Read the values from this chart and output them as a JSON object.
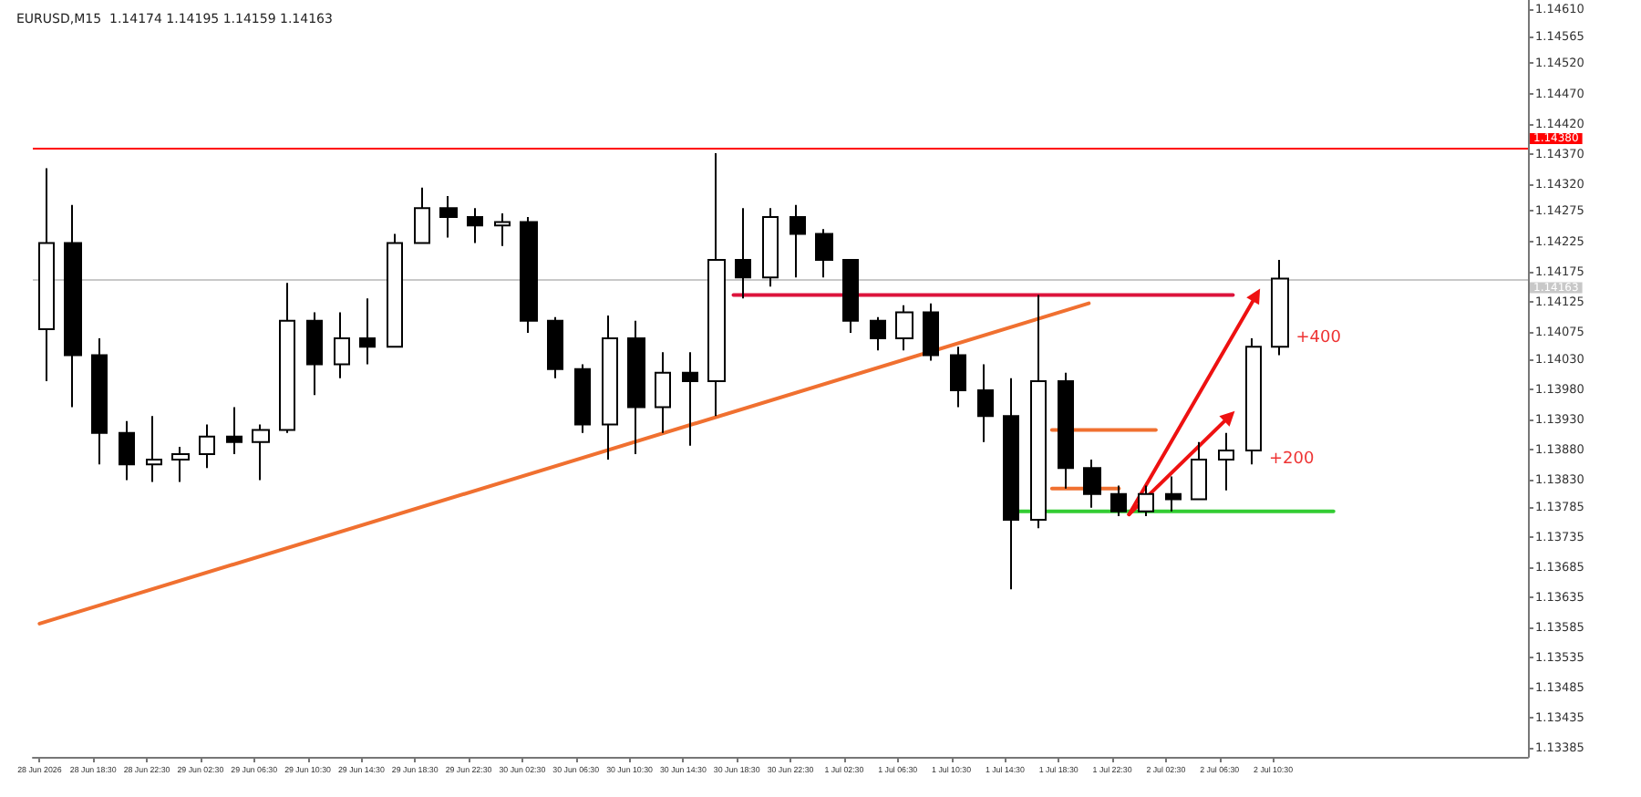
{
  "chart_data": {
    "type": "candlestick",
    "title": "EURUSD,M15  1.14174 1.14195 1.14159 1.14163",
    "color": "#000000",
    "x": [
      "2026-06-28T15:00",
      "2026-06-28T17:00",
      "2026-06-28T19:00",
      "2026-06-28T21:00",
      "2026-06-28T23:00",
      "2026-06-29T01:00",
      "2026-06-29T03:00",
      "2026-06-29T05:00",
      "2026-06-29T07:00",
      "2026-06-29T09:00",
      "2026-06-29T11:00",
      "2026-06-29T13:00",
      "2026-06-29T15:00",
      "2026-06-29T17:00",
      "2026-06-29T19:00",
      "2026-06-29T21:00",
      "2026-06-29T23:00",
      "2026-06-30T01:00",
      "2026-06-30T03:00",
      "2026-06-30T05:00",
      "2026-06-30T07:00",
      "2026-06-30T09:00",
      "2026-06-30T11:00",
      "2026-06-30T13:00",
      "2026-06-30T15:00",
      "2026-06-30T17:00",
      "2026-06-30T19:00",
      "2026-06-30T21:00",
      "2026-06-30T23:00",
      "2026-07-01T01:00",
      "2026-07-01T03:00",
      "2026-07-01T05:00",
      "2026-07-01T07:00",
      "2026-07-01T09:00",
      "2026-07-01T11:00",
      "2026-07-01T13:00",
      "2026-07-01T15:00",
      "2026-07-01T17:00",
      "2026-07-01T19:00",
      "2026-07-01T21:00",
      "2026-07-01T23:00",
      "2026-07-02T01:00",
      "2026-07-02T03:00",
      "2026-07-02T05:00",
      "2026-07-02T07:00",
      "2026-07-02T09:00",
      "2026-07-02T11:00"
    ],
    "ohlc": [
      [
        1.14079,
        1.14346,
        1.13993,
        1.14222
      ],
      [
        1.14222,
        1.14285,
        1.1395,
        1.14036
      ],
      [
        1.14036,
        1.14064,
        1.13855,
        1.13907
      ],
      [
        1.13907,
        1.13927,
        1.13829,
        1.13855
      ],
      [
        1.13855,
        1.13935,
        1.13826,
        1.13863
      ],
      [
        1.13863,
        1.13884,
        1.13826,
        1.13872
      ],
      [
        1.13872,
        1.13921,
        1.13849,
        1.13901
      ],
      [
        1.13901,
        1.1395,
        1.13872,
        1.13892
      ],
      [
        1.13892,
        1.13921,
        1.13829,
        1.13912
      ],
      [
        1.13912,
        1.14156,
        1.13907,
        1.14093
      ],
      [
        1.14093,
        1.14107,
        1.1397,
        1.14021
      ],
      [
        1.14021,
        1.14107,
        1.13998,
        1.14064
      ],
      [
        1.14064,
        1.1413,
        1.14021,
        1.1405
      ],
      [
        1.1405,
        1.14237,
        1.1405,
        1.14222
      ],
      [
        1.14222,
        1.14314,
        1.14222,
        1.1428
      ],
      [
        1.1428,
        1.143,
        1.14231,
        1.14265
      ],
      [
        1.14265,
        1.1428,
        1.14222,
        1.14251
      ],
      [
        1.14251,
        1.14271,
        1.14217,
        1.14257
      ],
      [
        1.14257,
        1.14265,
        1.14073,
        1.14093
      ],
      [
        1.14093,
        1.14099,
        1.13998,
        1.14013
      ],
      [
        1.14013,
        1.14021,
        1.13907,
        1.13921
      ],
      [
        1.13921,
        1.14102,
        1.13863,
        1.14064
      ],
      [
        1.14064,
        1.14093,
        1.13872,
        1.1395
      ],
      [
        1.1395,
        1.14041,
        1.13907,
        1.14007
      ],
      [
        1.14007,
        1.14041,
        1.13886,
        1.13993
      ],
      [
        1.13993,
        1.14371,
        1.13935,
        1.14194
      ],
      [
        1.14194,
        1.1428,
        1.1413,
        1.14165
      ],
      [
        1.14165,
        1.1428,
        1.1415,
        1.14265
      ],
      [
        1.14265,
        1.14285,
        1.14165,
        1.14237
      ],
      [
        1.14237,
        1.14245,
        1.14165,
        1.14194
      ],
      [
        1.14194,
        1.14194,
        1.14073,
        1.14093
      ],
      [
        1.14093,
        1.14099,
        1.14044,
        1.14064
      ],
      [
        1.14064,
        1.14119,
        1.14044,
        1.14107
      ],
      [
        1.14107,
        1.14122,
        1.14027,
        1.14036
      ],
      [
        1.14036,
        1.1405,
        1.1395,
        1.13978
      ],
      [
        1.13978,
        1.14021,
        1.13892,
        1.13935
      ],
      [
        1.13935,
        1.13998,
        1.13648,
        1.13763
      ],
      [
        1.13763,
        1.14136,
        1.13749,
        1.13993
      ],
      [
        1.13993,
        1.14007,
        1.13815,
        1.13849
      ],
      [
        1.13849,
        1.13863,
        1.13783,
        1.13806
      ],
      [
        1.13806,
        1.1382,
        1.13769,
        1.13777
      ],
      [
        1.13777,
        1.1382,
        1.13769,
        1.13806
      ],
      [
        1.13806,
        1.13835,
        1.13777,
        1.13797
      ],
      [
        1.13797,
        1.13892,
        1.13797,
        1.13863
      ],
      [
        1.13863,
        1.13907,
        1.13812,
        1.13878
      ],
      [
        1.13878,
        1.14064,
        1.13855,
        1.1405
      ],
      [
        1.1405,
        1.14194,
        1.14036,
        1.14163
      ]
    ],
    "series": [
      {
        "type": "line",
        "color": "#f07030",
        "x": [
          "2026-06-28T14:30",
          "2026-07-01T20:45"
        ],
        "values": [
          1.13591,
          1.14122
        ]
      },
      {
        "type": "line",
        "color": "#dc143c",
        "x": [
          "2026-06-30T18:15",
          "2026-07-02T07:30"
        ],
        "values": [
          1.14136,
          1.14136
        ]
      },
      {
        "type": "line",
        "color": "#33cc33",
        "x": [
          "2026-07-01T15:00",
          "2026-07-02T15:00"
        ],
        "values": [
          1.13777,
          1.13777
        ]
      },
      {
        "type": "line",
        "color": "#f07030",
        "x": [
          "2026-07-01T18:00",
          "2026-07-02T01:45"
        ],
        "values": [
          1.13912,
          1.13912
        ]
      },
      {
        "type": "line",
        "color": "#f07030",
        "x": [
          "2026-07-01T18:00",
          "2026-07-01T23:00"
        ],
        "values": [
          1.13815,
          1.13815
        ]
      },
      {
        "type": "line",
        "color": "#ee1111",
        "marker": "triangle",
        "x": [
          "2026-07-01T23:45",
          "2026-07-02T09:15"
        ],
        "values": [
          1.13772,
          1.14136
        ]
      },
      {
        "type": "line",
        "color": "#ee1111",
        "marker": "triangle",
        "x": [
          "2026-07-01T23:45",
          "2026-07-02T07:15"
        ],
        "values": [
          1.13772,
          1.13935
        ]
      }
    ],
    "annotations": [
      "+400",
      "+200"
    ],
    "ref_lines": [
      {
        "axis": "y",
        "value": 1.1438,
        "label": "1.14380",
        "color": "#ff0000"
      },
      {
        "axis": "y",
        "value": 1.14163,
        "label": "1.14163",
        "color": "#c8c8c8"
      }
    ],
    "xlim": [
      "2026-06-28T14:00",
      "2026-07-03T05:30"
    ],
    "xticks": [
      {
        "value": "2026-06-28T14:30",
        "label": "28 Jun 2026"
      },
      {
        "value": "2026-06-28T18:30",
        "label": "28 Jun 18:30"
      },
      {
        "value": "2026-06-28T22:30",
        "label": "28 Jun 22:30"
      },
      {
        "value": "2026-06-29T02:30",
        "label": "29 Jun 02:30"
      },
      {
        "value": "2026-06-29T06:30",
        "label": "29 Jun 06:30"
      },
      {
        "value": "2026-06-29T10:30",
        "label": "29 Jun 10:30"
      },
      {
        "value": "2026-06-29T14:30",
        "label": "29 Jun 14:30"
      },
      {
        "value": "2026-06-29T18:30",
        "label": "29 Jun 18:30"
      },
      {
        "value": "2026-06-29T22:30",
        "label": "29 Jun 22:30"
      },
      {
        "value": "2026-06-30T02:30",
        "label": "30 Jun 02:30"
      },
      {
        "value": "2026-06-30T06:30",
        "label": "30 Jun 06:30"
      },
      {
        "value": "2026-06-30T10:30",
        "label": "30 Jun 10:30"
      },
      {
        "value": "2026-06-30T14:30",
        "label": "30 Jun 14:30"
      },
      {
        "value": "2026-06-30T18:30",
        "label": "30 Jun 18:30"
      },
      {
        "value": "2026-06-30T22:30",
        "label": "30 Jun 22:30"
      },
      {
        "value": "2026-07-01T02:30",
        "label": "1 Jul 02:30"
      },
      {
        "value": "2026-07-01T06:30",
        "label": "1 Jul 06:30"
      },
      {
        "value": "2026-07-01T10:30",
        "label": "1 Jul 10:30"
      },
      {
        "value": "2026-07-01T14:30",
        "label": "1 Jul 14:30"
      },
      {
        "value": "2026-07-01T18:30",
        "label": "1 Jul 18:30"
      },
      {
        "value": "2026-07-01T22:30",
        "label": "1 Jul 22:30"
      },
      {
        "value": "2026-07-02T02:30",
        "label": "2 Jul 02:30"
      },
      {
        "value": "2026-07-02T06:30",
        "label": "2 Jul 06:30"
      },
      {
        "value": "2026-07-02T10:30",
        "label": "2 Jul 10:30"
      }
    ],
    "ylim": [
      1.1337,
      1.14625
    ],
    "yticks": [
      {
        "value": 1.1461,
        "label": "1.14610"
      },
      1.14565,
      {
        "value": 1.1452,
        "label": "1.14520"
      },
      {
        "value": 1.1447,
        "label": "1.14470"
      },
      {
        "value": 1.1442,
        "label": "1.14420"
      },
      {
        "value": 1.1437,
        "label": "1.14370"
      },
      {
        "value": 1.1432,
        "label": "1.14320"
      },
      1.14275,
      1.14225,
      1.14175,
      1.14125,
      1.14075,
      {
        "value": 1.1403,
        "label": "1.14030"
      },
      {
        "value": 1.1398,
        "label": "1.13980"
      },
      {
        "value": 1.1393,
        "label": "1.13930"
      },
      {
        "value": 1.1388,
        "label": "1.13880"
      },
      {
        "value": 1.1383,
        "label": "1.13830"
      },
      1.13785,
      1.13735,
      1.13685,
      1.13635,
      1.13585,
      1.13535,
      1.13485,
      1.13435,
      1.13385
    ]
  }
}
